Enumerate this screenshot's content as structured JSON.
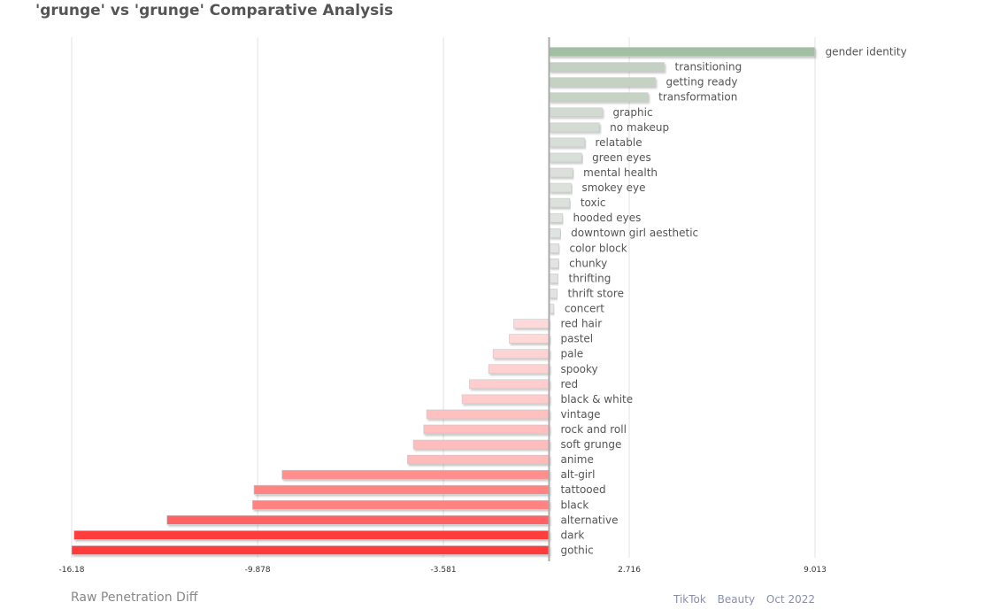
{
  "title": "'grunge' vs 'grunge' Comparative Analysis",
  "metric_label": "Raw Penetration Diff",
  "footer": {
    "platform": "TikTok",
    "category": "Beauty",
    "period": "Oct 2022"
  },
  "colors": {
    "positive": "#a3bfa3",
    "negative": "#ff3b3b",
    "neutral": "#e8e8e8"
  },
  "chart_data": {
    "type": "bar",
    "orientation": "horizontal",
    "title": "'grunge' vs 'grunge' Comparative Analysis",
    "xlabel": "Raw Penetration Diff",
    "xlim": [
      -16.18,
      9.013
    ],
    "xticks": [
      "-16.18",
      "-9.878",
      "-3.581",
      "2.716",
      "9.013"
    ],
    "grid": true,
    "categories": [
      "gender identity",
      "transitioning",
      "getting ready",
      "transformation",
      "graphic",
      "no makeup",
      "relatable",
      "green eyes",
      "mental health",
      "smokey eye",
      "toxic",
      "hooded eyes",
      "downtown girl aesthetic",
      "color block",
      "chunky",
      "thrifting",
      "thrift store",
      "concert",
      "red hair",
      "pastel",
      "pale",
      "spooky",
      "red",
      "black & white",
      "vintage",
      "rock and roll",
      "soft grunge",
      "anime",
      "alt-girl",
      "tattooed",
      "black",
      "alternative",
      "dark",
      "gothic"
    ],
    "values": [
      9.0,
      3.9,
      3.6,
      3.35,
      1.8,
      1.7,
      1.2,
      1.1,
      0.8,
      0.75,
      0.7,
      0.45,
      0.38,
      0.33,
      0.32,
      0.3,
      0.27,
      0.16,
      -1.2,
      -1.35,
      -1.9,
      -2.05,
      -2.7,
      -2.95,
      -4.15,
      -4.25,
      -4.6,
      -4.8,
      -9.05,
      -10.0,
      -10.05,
      -12.95,
      -16.1,
      -16.18
    ]
  }
}
